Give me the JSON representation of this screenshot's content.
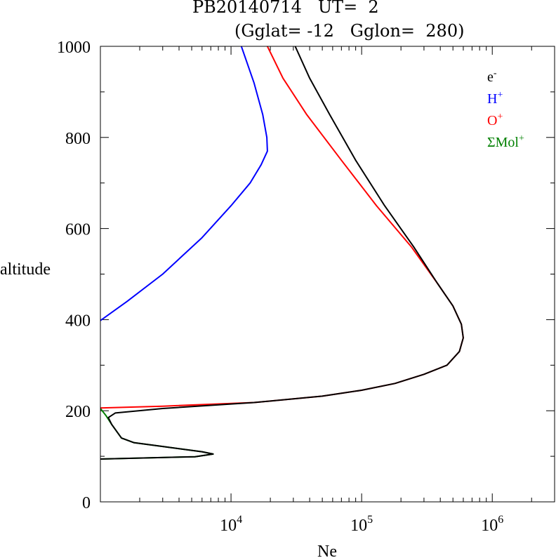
{
  "header": {
    "title": "PB20140714   UT=  2",
    "subtitle": "(Gglat= -12   Gglon=  280)"
  },
  "chart_data": {
    "type": "line",
    "xlabel": "Ne",
    "ylabel": "altitude",
    "xscale": "log",
    "xlim": [
      1000,
      3000000
    ],
    "ylim": [
      0,
      1000
    ],
    "xticks": [
      {
        "base": "10",
        "exp": "4",
        "value": 10000
      },
      {
        "base": "10",
        "exp": "5",
        "value": 100000
      },
      {
        "base": "10",
        "exp": "6",
        "value": 1000000
      }
    ],
    "yticks": [
      "0",
      "200",
      "400",
      "600",
      "800",
      "1000"
    ],
    "legend_position": "top-right",
    "series": [
      {
        "name": "e⁻",
        "base": "e",
        "sup": "-",
        "color": "#000000",
        "points": [
          [
            1000,
            94
          ],
          [
            5300,
            99
          ],
          [
            7300,
            105
          ],
          [
            6000,
            110
          ],
          [
            1800,
            130
          ],
          [
            1450,
            140
          ],
          [
            1220,
            170
          ],
          [
            1150,
            185
          ],
          [
            1300,
            195
          ],
          [
            3000,
            205
          ],
          [
            15000,
            218
          ],
          [
            50000,
            232
          ],
          [
            100000,
            245
          ],
          [
            180000,
            260
          ],
          [
            300000,
            280
          ],
          [
            450000,
            300
          ],
          [
            560000,
            330
          ],
          [
            600000,
            360
          ],
          [
            580000,
            390
          ],
          [
            500000,
            430
          ],
          [
            380000,
            480
          ],
          [
            250000,
            560
          ],
          [
            150000,
            650
          ],
          [
            90000,
            750
          ],
          [
            57000,
            850
          ],
          [
            40000,
            930
          ],
          [
            31000,
            1000
          ]
        ]
      },
      {
        "name": "H⁺",
        "base": "H",
        "sup": "+",
        "color": "#0000ff",
        "points": [
          [
            1000,
            398
          ],
          [
            1600,
            440
          ],
          [
            3000,
            500
          ],
          [
            6000,
            580
          ],
          [
            10000,
            650
          ],
          [
            14000,
            700
          ],
          [
            17000,
            740
          ],
          [
            19000,
            770
          ],
          [
            18800,
            800
          ],
          [
            17500,
            850
          ],
          [
            15000,
            920
          ],
          [
            12000,
            1000
          ]
        ]
      },
      {
        "name": "O⁺",
        "base": "O",
        "sup": "+",
        "color": "#ff0000",
        "points": [
          [
            1000,
            206
          ],
          [
            3000,
            210
          ],
          [
            15000,
            218
          ],
          [
            50000,
            232
          ],
          [
            100000,
            245
          ],
          [
            180000,
            260
          ],
          [
            300000,
            280
          ],
          [
            450000,
            300
          ],
          [
            560000,
            330
          ],
          [
            600000,
            360
          ],
          [
            580000,
            390
          ],
          [
            500000,
            430
          ],
          [
            380000,
            480
          ],
          [
            240000,
            560
          ],
          [
            130000,
            650
          ],
          [
            70000,
            750
          ],
          [
            38000,
            850
          ],
          [
            25000,
            930
          ],
          [
            19000,
            1000
          ]
        ]
      },
      {
        "name": "ΣMol⁺",
        "base": "ΣMol",
        "sup": "+",
        "color": "#008000",
        "points": [
          [
            1000,
            94
          ],
          [
            5300,
            99
          ],
          [
            7300,
            105
          ],
          [
            6000,
            110
          ],
          [
            1800,
            130
          ],
          [
            1450,
            140
          ],
          [
            1220,
            170
          ],
          [
            1100,
            190
          ],
          [
            1000,
            205
          ]
        ]
      }
    ]
  }
}
